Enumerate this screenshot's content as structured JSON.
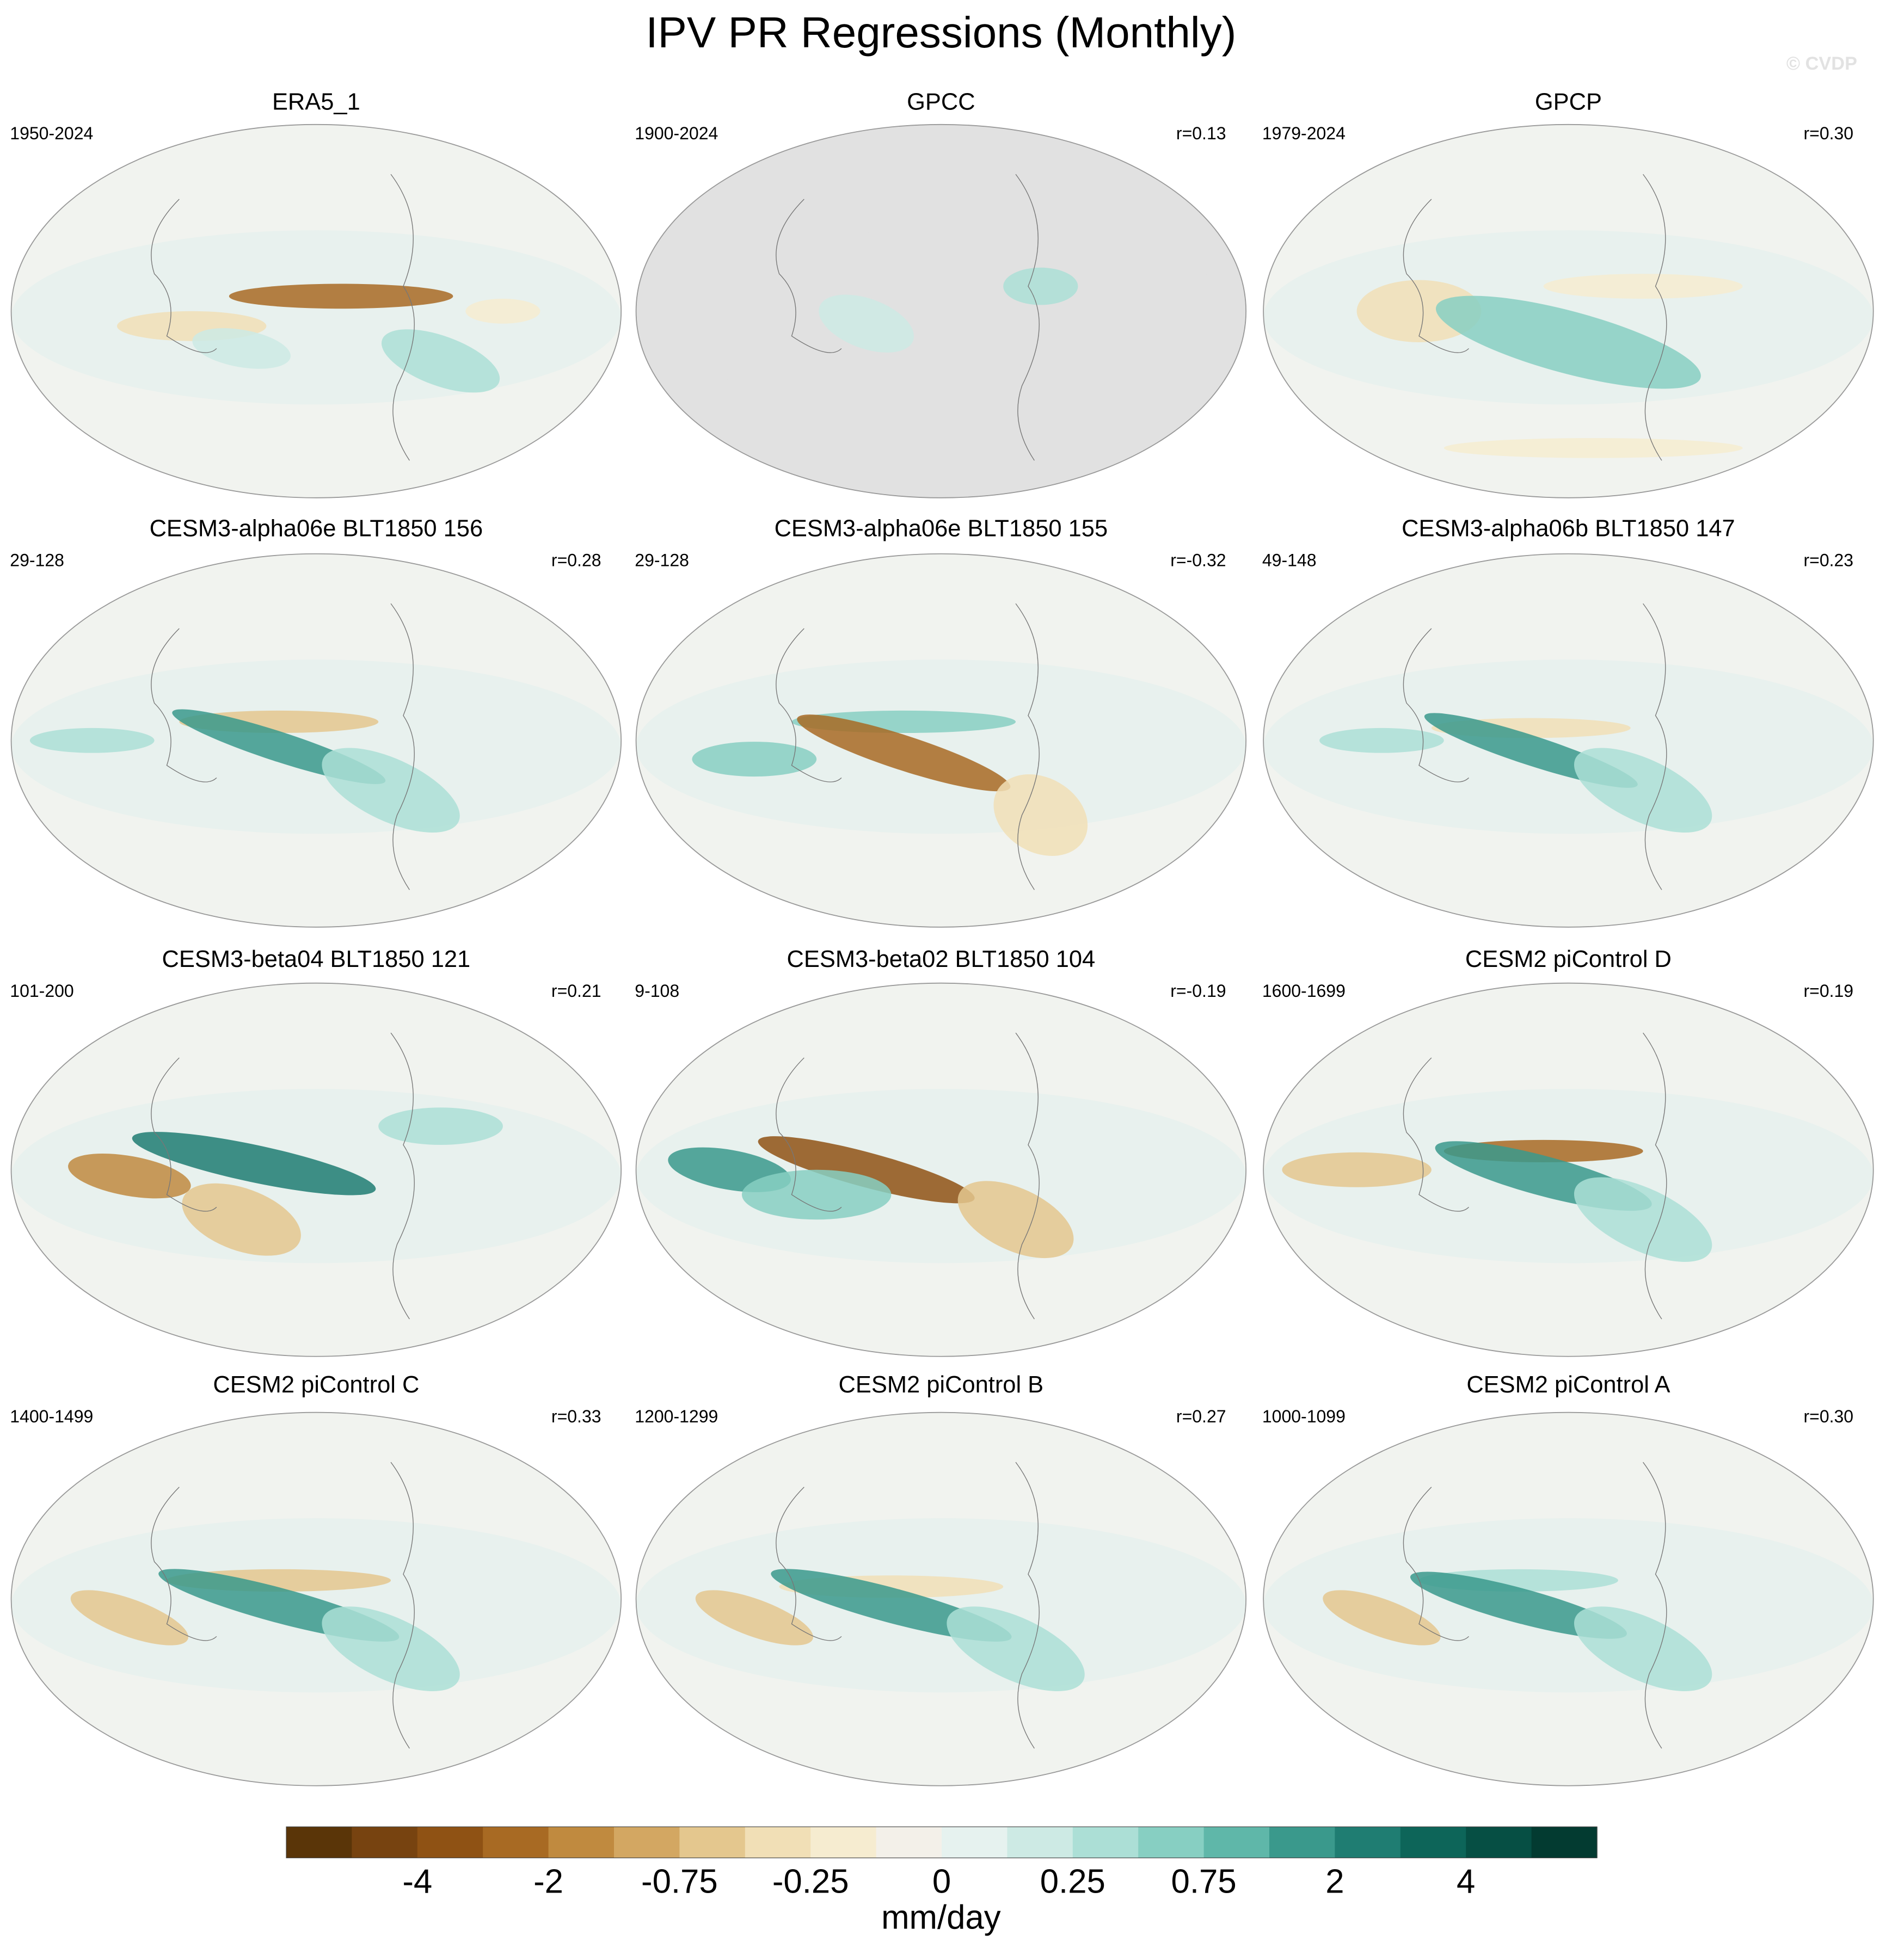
{
  "title": "IPV PR Regressions (Monthly)",
  "watermark": "© CVDP",
  "panels": [
    {
      "title": "ERA5_1",
      "period": "1950-2024"
    },
    {
      "title": "GPCC",
      "period": "1900-2024",
      "r": "r=0.13"
    },
    {
      "title": "GPCP",
      "period": "1979-2024",
      "r": "r=0.30"
    },
    {
      "title": "CESM3-alpha06e BLT1850 156",
      "period": "29-128",
      "r": "r=0.28"
    },
    {
      "title": "CESM3-alpha06e BLT1850 155",
      "period": "29-128",
      "r": "r=-0.32"
    },
    {
      "title": "CESM3-alpha06b BLT1850 147",
      "period": "49-148",
      "r": "r=0.23"
    },
    {
      "title": "CESM3-beta04 BLT1850 121",
      "period": "101-200",
      "r": "r=0.21"
    },
    {
      "title": "CESM3-beta02 BLT1850 104",
      "period": "9-108",
      "r": "r=-0.19"
    },
    {
      "title": "CESM2 piControl D",
      "period": "1600-1699",
      "r": "r=0.19"
    },
    {
      "title": "CESM2 piControl C",
      "period": "1400-1499",
      "r": "r=0.33"
    },
    {
      "title": "CESM2 piControl B",
      "period": "1200-1299",
      "r": "r=0.27"
    },
    {
      "title": "CESM2 piControl A",
      "period": "1000-1099",
      "r": "r=0.30"
    }
  ],
  "colorbar": {
    "colors": [
      "#5a3508",
      "#774310",
      "#8f5214",
      "#a86a23",
      "#c08a3f",
      "#d3a762",
      "#e4c78e",
      "#f1dfb6",
      "#f6ecd0",
      "#f3f0e9",
      "#e6f2ef",
      "#cdeae4",
      "#acdfd6",
      "#87cfc2",
      "#5fb7a9",
      "#3a998c",
      "#1f7d72",
      "#0d6559",
      "#064f44",
      "#033b31"
    ],
    "labels": [
      "-4",
      "-2",
      "-0.75",
      "-0.25",
      "0",
      "0.25",
      "0.75",
      "2",
      "4"
    ],
    "units": "mm/day"
  }
}
